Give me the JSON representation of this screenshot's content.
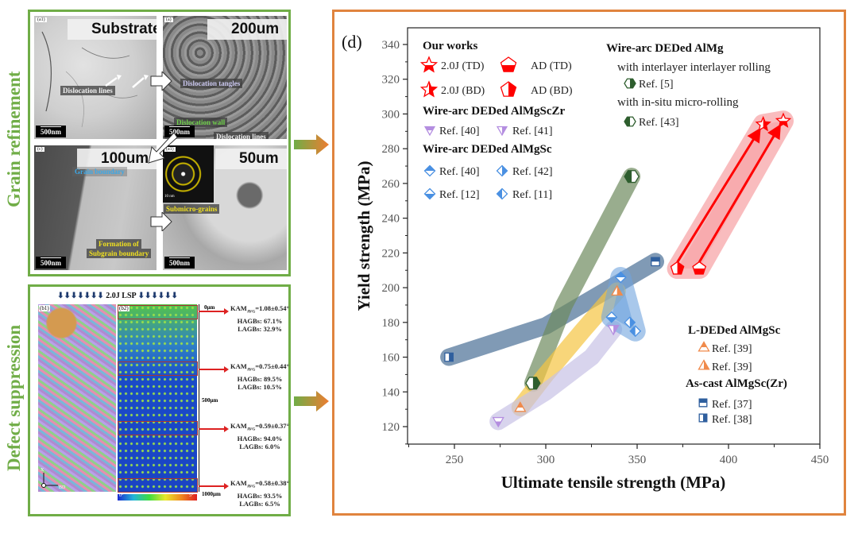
{
  "left_panel": {
    "section_labels": [
      "Grain refinement",
      "Defect suppression"
    ],
    "tem_images": [
      {
        "tag": "(a1)",
        "title": "Substrate",
        "scale": "500nm",
        "notes": [
          "Dislocation lines"
        ]
      },
      {
        "tag": "(a)",
        "title": "200um",
        "scale": "500nm",
        "notes": [
          "Dislocation tangles",
          "Dislocation wall",
          "Dislocation lines"
        ]
      },
      {
        "tag": "(c)",
        "title": "100um",
        "scale": "500nm",
        "notes": [
          "Grain boundary",
          "Formation of",
          "Subgrain boundary"
        ]
      },
      {
        "tag": "(a1)",
        "title": "50um",
        "scale": "500nm",
        "notes": [
          "Submicro-grains",
          "10 nm"
        ]
      }
    ],
    "ebsd": {
      "header": "2.0J LSP",
      "tag_b1": "(b1)",
      "tag_b2": "(b2)",
      "axis_ticks": [
        "0μm",
        "500μm",
        "1000μm"
      ],
      "colorbar": [
        "0°",
        "5°"
      ],
      "axes": [
        "X",
        "BD"
      ],
      "zones": [
        {
          "kam_label": "KAM",
          "kam_sub": "AVG",
          "kam_value": "=1.08±0.54°",
          "hagbs": "HAGBs: 67.1%",
          "lagbs": "LAGBs:  32.9%"
        },
        {
          "kam_label": "KAM",
          "kam_sub": "AVG",
          "kam_value": "=0.75±0.44°",
          "hagbs": "HAGBs: 89.5%",
          "lagbs": "LAGBs: 10.5%"
        },
        {
          "kam_label": "KAM",
          "kam_sub": "AVG",
          "kam_value": "=0.59±0.37°",
          "hagbs": "HAGBs: 94.0%",
          "lagbs": "LAGBs:  6.0%"
        },
        {
          "kam_label": "KAM",
          "kam_sub": "AVG",
          "kam_value": "=0.58±0.38°",
          "hagbs": "HAGBs: 93.5%",
          "lagbs": "LAGBs:  6.5%"
        }
      ]
    }
  },
  "colors": {
    "green_frame": "#70ad47",
    "orange_frame": "#e0843e",
    "red": "#ff0000",
    "steel_blue": "#4a6f96",
    "olive_green": "#6e8a5e",
    "yellow": "#f5c542",
    "lavender": "#c8c2e6",
    "light_blue": "#6fa3dd",
    "pink": "#f7a6a8"
  },
  "chart_data": {
    "type": "scatter",
    "panel_label": "(d)",
    "xlabel": "Ultimate tensile strength (MPa)",
    "ylabel": "Yield strength (MPa)",
    "xlim": [
      230,
      450
    ],
    "ylim": [
      110,
      350
    ],
    "xticks": [
      250,
      300,
      350,
      400,
      450
    ],
    "yticks": [
      120,
      140,
      160,
      180,
      200,
      220,
      240,
      260,
      280,
      300,
      320,
      340
    ],
    "grid": false,
    "legend": {
      "groups": [
        {
          "title": "Our works",
          "entries": [
            "2.0J (TD)",
            "AD (TD)",
            "2.0J (BD)",
            "AD (BD)"
          ]
        },
        {
          "title": "Wire-arc DEDed AlMgScZr",
          "entries": [
            "Ref. [40]",
            "Ref. [41]"
          ]
        },
        {
          "title": "Wire-arc DEDed AlMgSc",
          "entries": [
            "Ref. [40]",
            "Ref. [42]",
            "Ref. [12]",
            "Ref. [11]"
          ]
        },
        {
          "title": "Wire-arc DEDed AlMg",
          "subtitles": [
            "with interlayer interlayer rolling",
            "with in-situ micro-rolling"
          ],
          "entries": [
            "Ref. [5]",
            "Ref. [43]"
          ]
        },
        {
          "title": "L-DEDed AlMgSc",
          "entries": [
            "Ref. [39]",
            "Ref. [39]"
          ]
        },
        {
          "title": "As-cast AlMgSc(Zr)",
          "entries": [
            "Ref. [37]",
            "Ref. [38]"
          ]
        }
      ]
    },
    "series": [
      {
        "name": "2.0J (TD)",
        "group": "Our works",
        "marker": "star-halfbottom",
        "color": "#ff0000",
        "x": 430,
        "y": 296
      },
      {
        "name": "2.0J (BD)",
        "group": "Our works",
        "marker": "star-halfright",
        "color": "#ff0000",
        "x": 419,
        "y": 294
      },
      {
        "name": "AD (TD)",
        "group": "Our works",
        "marker": "pentagon-halfbottom",
        "color": "#ff0000",
        "x": 384,
        "y": 211
      },
      {
        "name": "AD (BD)",
        "group": "Our works",
        "marker": "pentagon-halfright",
        "color": "#ff0000",
        "x": 372,
        "y": 211
      },
      {
        "name": "AlMgScZr Ref. [40]",
        "group": "Wire-arc DEDed AlMgScZr",
        "marker": "tri-down-halfbottom",
        "color": "#b48ee0",
        "x": 274,
        "y": 123
      },
      {
        "name": "AlMgScZr Ref. [41]",
        "group": "Wire-arc DEDed AlMgScZr",
        "marker": "tri-down-halfright",
        "color": "#b48ee0",
        "x": 337,
        "y": 176
      },
      {
        "name": "AlMgSc Ref. [40]",
        "group": "Wire-arc DEDed AlMgSc",
        "marker": "diamond-halftop",
        "color": "#4a90e2",
        "x": 341,
        "y": 206
      },
      {
        "name": "AlMgSc Ref. [42]",
        "group": "Wire-arc DEDed AlMgSc",
        "marker": "diamond-halfright",
        "color": "#4a90e2",
        "x": 346,
        "y": 180
      },
      {
        "name": "AlMgSc Ref. [12]",
        "group": "Wire-arc DEDed AlMgSc",
        "marker": "diamond-halfbottom",
        "color": "#4a90e2",
        "x": 336,
        "y": 183
      },
      {
        "name": "AlMgSc Ref. [11]",
        "group": "Wire-arc DEDed AlMgSc",
        "marker": "diamond-halfleft",
        "color": "#4a90e2",
        "x": 349,
        "y": 175
      },
      {
        "name": "AlMg Ref. [5]",
        "group": "Wire-arc DEDed AlMg",
        "marker": "hexagon-halfright",
        "color": "#2e5e2e",
        "x": 293,
        "y": 145
      },
      {
        "name": "AlMg Ref. [43]",
        "group": "Wire-arc DEDed AlMg",
        "marker": "hexagon-halfleft",
        "color": "#2e5e2e",
        "x": 347,
        "y": 264
      },
      {
        "name": "L-DED Ref. [39] a",
        "group": "L-DEDed AlMgSc",
        "marker": "tri-up-halftop",
        "color": "#f08a4b",
        "x": 286,
        "y": 131
      },
      {
        "name": "L-DED Ref. [39] b",
        "group": "L-DEDed AlMgSc",
        "marker": "tri-up-halfright",
        "color": "#f08a4b",
        "x": 339,
        "y": 198
      },
      {
        "name": "As-cast Ref. [37]",
        "group": "As-cast AlMgSc(Zr)",
        "marker": "square-halftop",
        "color": "#2f5f9e",
        "x": 360,
        "y": 215
      },
      {
        "name": "As-cast Ref. [38]",
        "group": "As-cast AlMgSc(Zr)",
        "marker": "square-halfright",
        "color": "#2f5f9e",
        "x": 247,
        "y": 160
      }
    ],
    "arrows": [
      {
        "from": [
          372,
          211
        ],
        "to": [
          417,
          291
        ]
      },
      {
        "from": [
          384,
          211
        ],
        "to": [
          428,
          293
        ]
      }
    ],
    "bands": [
      {
        "name": "pink-band",
        "color": "#f7a6a8",
        "points": [
          [
            372,
            211
          ],
          [
            384,
            211
          ],
          [
            430,
            296
          ],
          [
            419,
            294
          ]
        ]
      },
      {
        "name": "steel-band",
        "color": "#4a6f96",
        "points": [
          [
            247,
            160
          ],
          [
            300,
            178
          ],
          [
            360,
            215
          ]
        ]
      },
      {
        "name": "olive-band",
        "color": "#6e8a5e",
        "points": [
          [
            293,
            145
          ],
          [
            310,
            190
          ],
          [
            335,
            240
          ],
          [
            347,
            264
          ]
        ]
      },
      {
        "name": "yellow-band",
        "color": "#f5c542",
        "points": [
          [
            286,
            131
          ],
          [
            300,
            150
          ],
          [
            320,
            175
          ],
          [
            339,
            198
          ]
        ]
      },
      {
        "name": "lavender-band",
        "color": "#c8c2e6",
        "points": [
          [
            274,
            123
          ],
          [
            300,
            140
          ],
          [
            325,
            160
          ],
          [
            337,
            176
          ]
        ]
      },
      {
        "name": "lightblue-band",
        "color": "#6fa3dd",
        "points": [
          [
            341,
            206
          ],
          [
            336,
            183
          ],
          [
            349,
            175
          ]
        ]
      }
    ]
  }
}
